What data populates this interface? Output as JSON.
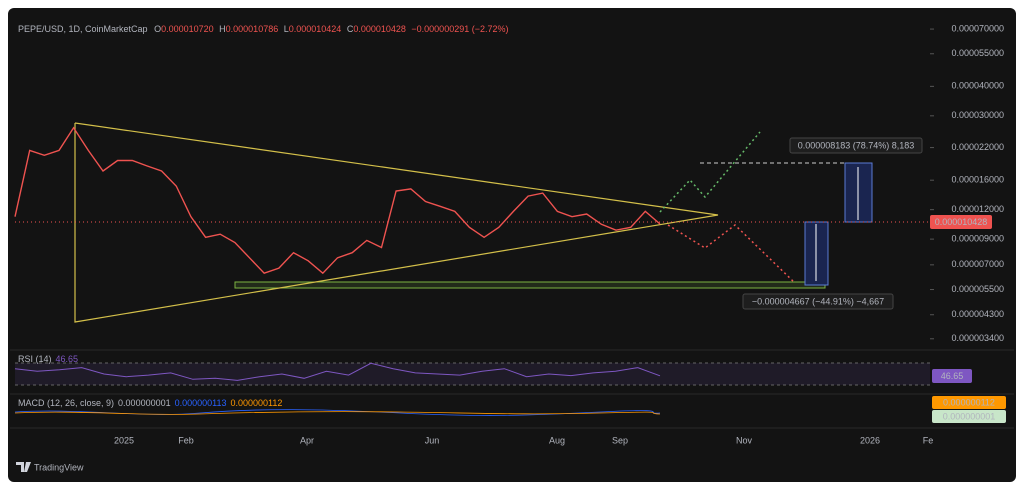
{
  "header": {
    "symbol": "PEPE/USD, 1D, CoinMarketCap",
    "open_label": "O",
    "open": "0.000010720",
    "high_label": "H",
    "high": "0.000010786",
    "low_label": "L",
    "low": "0.000010424",
    "close_label": "C",
    "close": "0.000010428",
    "change": "−0.000000291 (−2.72%)"
  },
  "chart_data": {
    "type": "line",
    "log_scale": true,
    "ylim": [
      3.2e-06,
      7.5e-05
    ],
    "yticks": [
      {
        "value": 7e-05,
        "label": "0.000070000"
      },
      {
        "value": 5.5e-05,
        "label": "0.000055000"
      },
      {
        "value": 4e-05,
        "label": "0.000040000"
      },
      {
        "value": 3e-05,
        "label": "0.000030000"
      },
      {
        "value": 2.2e-05,
        "label": "0.000022000"
      },
      {
        "value": 1.6e-05,
        "label": "0.000016000"
      },
      {
        "value": 1.2e-05,
        "label": "0.000012000"
      },
      {
        "value": 9e-06,
        "label": "0.000009000"
      },
      {
        "value": 7e-06,
        "label": "0.000007000"
      },
      {
        "value": 5.5e-06,
        "label": "0.000005500"
      },
      {
        "value": 4.3e-06,
        "label": "0.000004300"
      },
      {
        "value": 3.4e-06,
        "label": "0.000003400"
      }
    ],
    "x_axis_labels": [
      "2025",
      "Feb",
      "Apr",
      "Jun",
      "Aug",
      "Sep",
      "Nov",
      "2026",
      "Fe"
    ],
    "series": [
      {
        "name": "PEPE/USD",
        "color": "#ef5350",
        "values": [
          1.12e-05,
          2.14e-05,
          2.04e-05,
          2.14e-05,
          2.67e-05,
          2.14e-05,
          1.75e-05,
          1.94e-05,
          1.94e-05,
          1.84e-05,
          1.75e-05,
          1.51e-05,
          1.12e-05,
          9.16e-06,
          9.44e-06,
          8.71e-06,
          7.5e-06,
          6.45e-06,
          6.78e-06,
          7.88e-06,
          7.28e-06,
          6.45e-06,
          7.5e-06,
          7.88e-06,
          8.89e-06,
          8.29e-06,
          1.44e-05,
          1.47e-05,
          1.3e-05,
          1.24e-05,
          1.18e-05,
          1.01e-05,
          9.16e-06,
          1.01e-05,
          1.18e-05,
          1.37e-05,
          1.41e-05,
          1.18e-05,
          1.12e-05,
          1.15e-05,
          1.04e-05,
          9.82e-06,
          1.01e-05,
          1.18e-05,
          1.0428e-05
        ]
      }
    ],
    "price_tag": "0.000010428",
    "annotations": {
      "upside": "0.000008183 (78.74%) 8,183",
      "downside": "−0.000004667 (−44.91%) −4,667"
    }
  },
  "rsi": {
    "label": "RSI (14)",
    "value": "46.65",
    "tag": "46.65",
    "ylim": [
      20,
      80
    ],
    "values": [
      60,
      55,
      58,
      62,
      50,
      45,
      48,
      52,
      40,
      42,
      38,
      45,
      50,
      42,
      55,
      48,
      70,
      60,
      52,
      50,
      48,
      55,
      60,
      45,
      50,
      47,
      52,
      55,
      62,
      46.65
    ]
  },
  "macd": {
    "label": "MACD (12, 26, close, 9)",
    "histogram": "0.000000001",
    "macd": "0.000000113",
    "signal": "0.000000112",
    "tag_signal": "0.000000112",
    "tag_histogram": "0.000000001"
  },
  "footer": {
    "brand": "TradingView"
  }
}
